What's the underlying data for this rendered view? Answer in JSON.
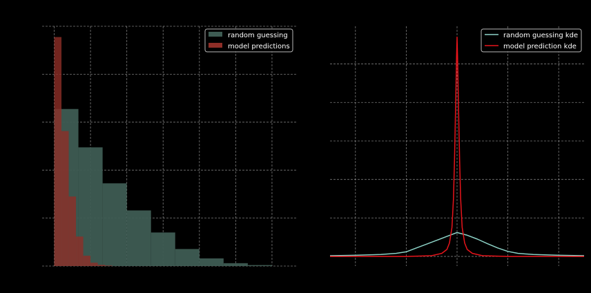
{
  "colors": {
    "background": "#000000",
    "grid": "#b0b0b0",
    "random_hist": "#3e5c53",
    "model_hist": "#8e2e27",
    "random_kde": "#8dd3c7",
    "model_kde": "#e8141b",
    "legend_border": "#cccccc"
  },
  "chart_data": [
    {
      "type": "bar",
      "legend_position": "top-right",
      "grid": true,
      "xlim": [
        -0.05,
        1.0
      ],
      "ylim": [
        0,
        1.0
      ],
      "series": [
        {
          "name": "random guessing",
          "color": "#3e5c53",
          "bins": [
            {
              "x0": 0.0,
              "x1": 0.1,
              "y": 0.655
            },
            {
              "x0": 0.1,
              "x1": 0.2,
              "y": 0.495
            },
            {
              "x0": 0.2,
              "x1": 0.3,
              "y": 0.345
            },
            {
              "x0": 0.3,
              "x1": 0.4,
              "y": 0.232
            },
            {
              "x0": 0.4,
              "x1": 0.5,
              "y": 0.14
            },
            {
              "x0": 0.5,
              "x1": 0.6,
              "y": 0.071
            },
            {
              "x0": 0.6,
              "x1": 0.7,
              "y": 0.032
            },
            {
              "x0": 0.7,
              "x1": 0.8,
              "y": 0.012
            },
            {
              "x0": 0.8,
              "x1": 0.9,
              "y": 0.004
            }
          ]
        },
        {
          "name": "model predictions",
          "color": "#8e2e27",
          "bins": [
            {
              "x0": 0.0,
              "x1": 0.03,
              "y": 0.955
            },
            {
              "x0": 0.03,
              "x1": 0.06,
              "y": 0.563
            },
            {
              "x0": 0.06,
              "x1": 0.09,
              "y": 0.29
            },
            {
              "x0": 0.09,
              "x1": 0.12,
              "y": 0.123
            },
            {
              "x0": 0.12,
              "x1": 0.15,
              "y": 0.043
            },
            {
              "x0": 0.15,
              "x1": 0.18,
              "y": 0.014
            },
            {
              "x0": 0.18,
              "x1": 0.21,
              "y": 0.005
            },
            {
              "x0": 0.21,
              "x1": 0.24,
              "y": 0.002
            }
          ]
        }
      ]
    },
    {
      "type": "line",
      "legend_position": "top-right",
      "grid": true,
      "xlim": [
        -2.5,
        2.5
      ],
      "ylim": [
        -0.25,
        5.98
      ],
      "series": [
        {
          "name": "random guessing kde",
          "color": "#8dd3c7",
          "x": [
            -2.5,
            -2.0,
            -1.5,
            -1.2,
            -1.0,
            -0.8,
            -0.6,
            -0.4,
            -0.2,
            0.0,
            0.2,
            0.4,
            0.6,
            0.8,
            1.0,
            1.2,
            1.5,
            2.0,
            2.5
          ],
          "y": [
            0.02,
            0.03,
            0.05,
            0.08,
            0.12,
            0.22,
            0.32,
            0.42,
            0.52,
            0.62,
            0.55,
            0.45,
            0.33,
            0.22,
            0.13,
            0.08,
            0.05,
            0.03,
            0.02
          ]
        },
        {
          "name": "model prediction kde",
          "color": "#e8141b",
          "x": [
            -2.5,
            -1.0,
            -0.5,
            -0.3,
            -0.2,
            -0.15,
            -0.1,
            -0.07,
            -0.05,
            -0.03,
            -0.01,
            0.0,
            0.01,
            0.03,
            0.05,
            0.07,
            0.1,
            0.15,
            0.2,
            0.3,
            0.5,
            1.0,
            2.5
          ],
          "y": [
            0.0,
            0.0,
            0.02,
            0.08,
            0.18,
            0.35,
            0.75,
            1.5,
            2.5,
            3.8,
            5.2,
            5.7,
            5.2,
            3.8,
            2.5,
            1.5,
            0.75,
            0.35,
            0.18,
            0.08,
            0.02,
            0.0,
            0.0
          ]
        }
      ]
    }
  ]
}
